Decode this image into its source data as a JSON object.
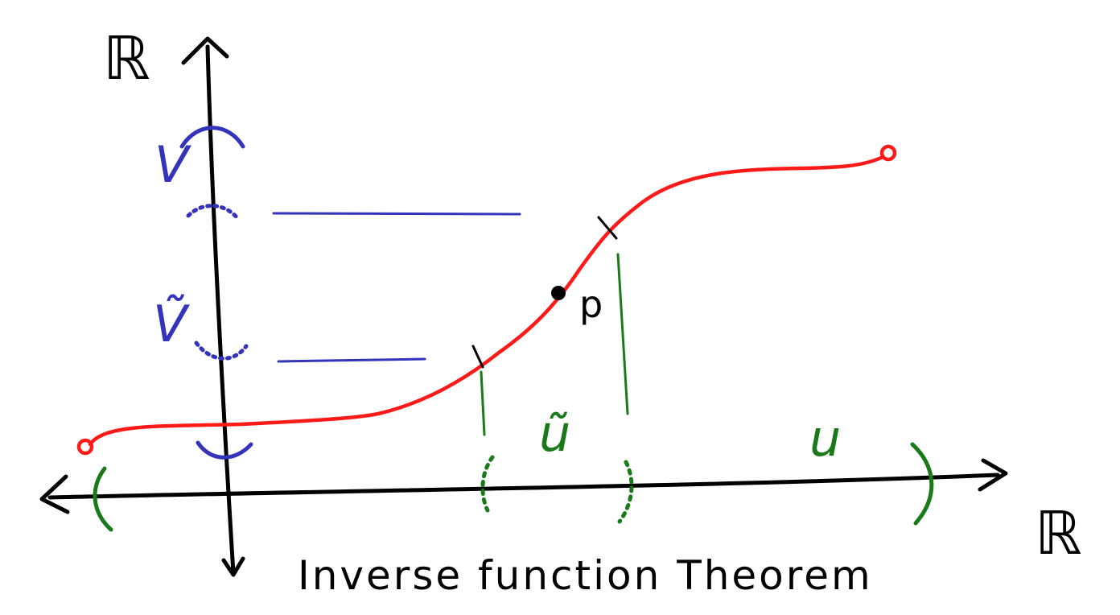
{
  "labels": {
    "y_axis": "ℝ",
    "x_axis": "ℝ",
    "point": "p",
    "v": "V",
    "v_tilde": "Ṽ",
    "u": "u",
    "u_tilde": "ũ",
    "caption": "Inverse function Theorem"
  },
  "colors": {
    "axes": "#000000",
    "curve": "#ff1a1a",
    "codomain_intervals": "#3333bb",
    "domain_intervals": "#1a7a1a"
  }
}
